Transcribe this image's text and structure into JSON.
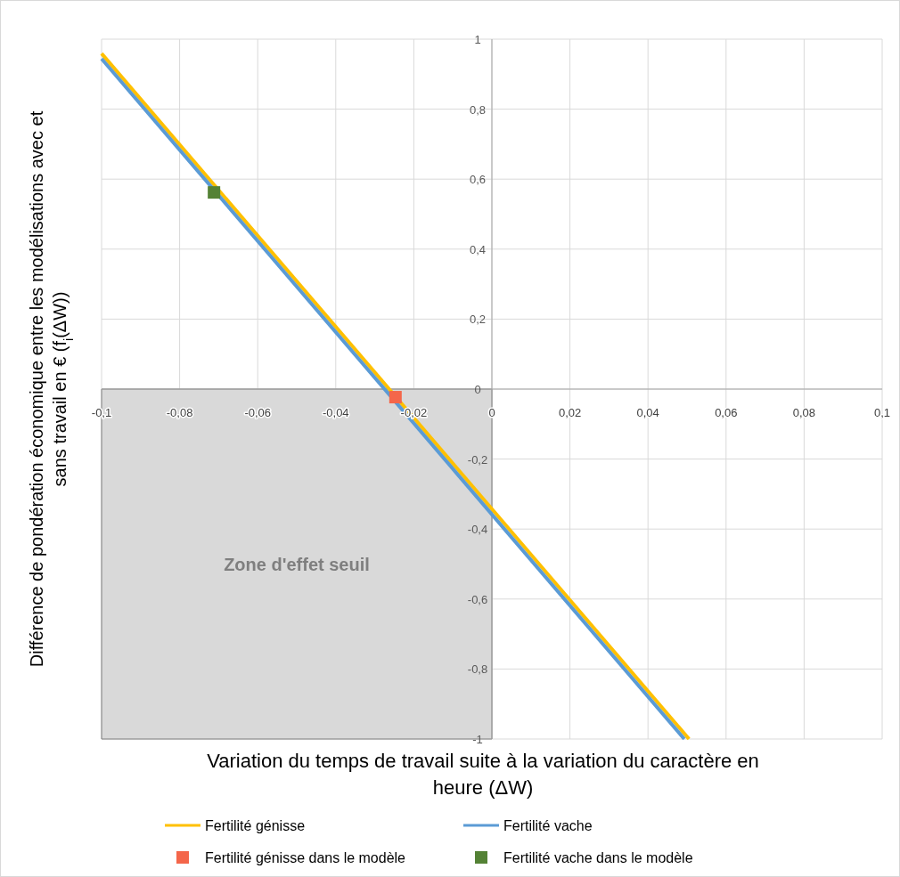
{
  "chart_data": {
    "type": "line",
    "xlabel": "Variation du temps de travail suite à la variation du caractère en heure (ΔW)",
    "ylabel": "Différence de pondération économique entre les modélisations avec et sans travail en € (f$_{i}$(ΔW))",
    "xlim": [
      -0.1,
      0.1
    ],
    "ylim": [
      -1,
      1
    ],
    "xticks": [
      {
        "value": -0.1,
        "label": "-0,1"
      },
      {
        "value": -0.08,
        "label": "-0,08"
      },
      {
        "value": -0.06,
        "label": "-0,06"
      },
      {
        "value": -0.04,
        "label": "-0,04"
      },
      {
        "value": -0.02,
        "label": "-0,02"
      },
      0,
      {
        "value": 0.02,
        "label": "0,02"
      },
      {
        "value": 0.04,
        "label": "0,04"
      },
      {
        "value": 0.06,
        "label": "0,06"
      },
      {
        "value": 0.08,
        "label": "0,08"
      },
      {
        "value": 0.1,
        "label": "0,1"
      }
    ],
    "yticks": [
      -1,
      {
        "value": -0.8,
        "label": "-0,8"
      },
      {
        "value": -0.6,
        "label": "-0,6"
      },
      {
        "value": -0.4,
        "label": "-0,4"
      },
      {
        "value": -0.2,
        "label": "-0,2"
      },
      0,
      {
        "value": 0.2,
        "label": "0,2"
      },
      {
        "value": 0.4,
        "label": "0,4"
      },
      {
        "value": 0.6,
        "label": "0,6"
      },
      {
        "value": 0.8,
        "label": "0,8"
      },
      1
    ],
    "grid": true,
    "legend": "bottom",
    "series": [
      {
        "type": "area",
        "color": "#d9d9d9",
        "x": [
          -0.1,
          0
        ],
        "values": [
          -1,
          -1
        ]
      },
      {
        "type": "line",
        "name": "Fertilité génisse",
        "color": "#ffc000",
        "x": [
          -0.1,
          0.0505
        ],
        "values": [
          0.959,
          -1
        ]
      },
      {
        "type": "line",
        "name": "Fertilité vache",
        "color": "#5b9bd5",
        "x": [
          -0.1,
          0.0493
        ],
        "values": [
          0.944,
          -1
        ]
      },
      {
        "type": "scatter",
        "name": "Fertilité génisse dans le modèle",
        "color": "#f4664a",
        "marker": "square",
        "x": [
          -0.0247
        ],
        "values": [
          -0.023
        ]
      },
      {
        "type": "scatter",
        "name": "Fertilité vache dans le modèle",
        "color": "#548235",
        "marker": "square",
        "x": [
          -0.0712
        ],
        "values": [
          0.562
        ]
      }
    ],
    "annotations": [
      "Zone d'effet seuil"
    ]
  }
}
